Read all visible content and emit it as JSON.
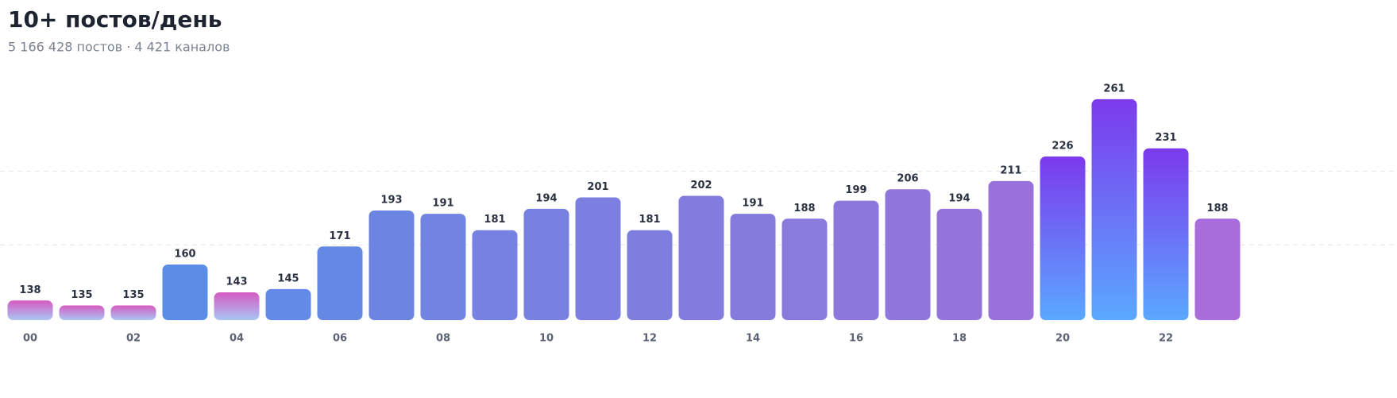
{
  "chart_data": {
    "type": "bar",
    "title": "10+ постов/день",
    "subtitle": "5 166 428 постов · 4 421 каналов",
    "categories": [
      "00",
      null,
      "02",
      null,
      "04",
      null,
      "06",
      null,
      "08",
      null,
      "10",
      null,
      "12",
      null,
      "14",
      null,
      "16",
      null,
      "18",
      null,
      "20",
      null,
      "22",
      null
    ],
    "values": [
      138,
      135,
      135,
      160,
      143,
      145,
      171,
      193,
      191,
      181,
      194,
      201,
      181,
      202,
      191,
      188,
      199,
      206,
      194,
      211,
      226,
      261,
      231,
      188
    ],
    "colors": [
      [
        "#d65ac2",
        "#a9c6f4"
      ],
      [
        "#d65ac2",
        "#a9c6f4"
      ],
      [
        "#d65ac2",
        "#a9c6f4"
      ],
      "#5b8de6",
      [
        "#d65ac2",
        "#a9c6f4"
      ],
      "#628ae6",
      "#6588e5",
      "#6c85e3",
      "#7184e2",
      "#7582e1",
      "#7880e0",
      "#7c7fdf",
      "#7d7ede",
      "#827cde",
      "#857bdd",
      "#897add",
      "#8c78dc",
      "#9076db",
      "#9474da",
      "#9a70da",
      [
        "#7c3aed",
        "#5aa8ff"
      ],
      [
        "#7c3aed",
        "#5aa8ff"
      ],
      [
        "#7c3aed",
        "#5aa8ff"
      ],
      "#a96cdb"
    ],
    "ylim": [
      126,
      276
    ],
    "yticks": [
      172,
      217
    ],
    "grid": true
  }
}
